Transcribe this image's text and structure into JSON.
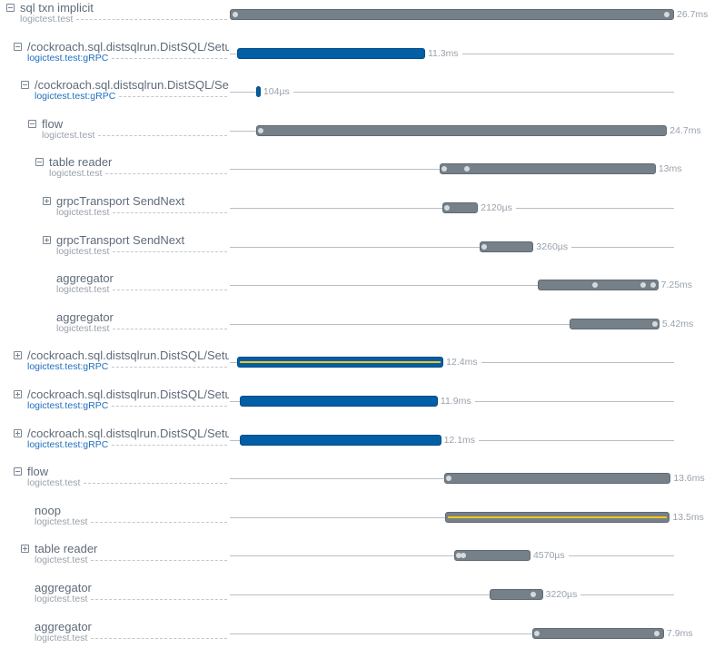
{
  "timeline": {
    "total_ms": 26.7
  },
  "colors": {
    "gray_bar": "#758089",
    "blue_bar": "#035fa5",
    "highlight": "#f2c618",
    "grpc_text": "#1f6fbf"
  },
  "spans": [
    {
      "title": "sql txn implicit",
      "service": "logictest.test",
      "toggle": "minus",
      "depth": 0,
      "start_ms": 0,
      "duration_ms": 26.7,
      "duration_label": "26.7ms",
      "color": "gray",
      "logs_ms": [
        0.3,
        26.2
      ]
    },
    {
      "title": "/cockroach.sql.distsqlrun.DistSQL/SetupFlow",
      "service": "logictest.test:gRPC",
      "toggle": "minus",
      "depth": 1,
      "start_ms": 0.44,
      "duration_ms": 11.3,
      "duration_label": "11.3ms",
      "color": "blue",
      "logs_ms": []
    },
    {
      "title": "/cockroach.sql.distsqlrun.DistSQL/SetupFlow",
      "service": "logictest.test:gRPC",
      "toggle": "minus",
      "depth": 2,
      "start_ms": 1.58,
      "duration_ms": 0.104,
      "duration_label": "104µs",
      "color": "blue",
      "logs_ms": []
    },
    {
      "title": "flow",
      "service": "logictest.test",
      "toggle": "minus",
      "depth": 3,
      "start_ms": 1.58,
      "duration_ms": 24.7,
      "duration_label": "24.7ms",
      "color": "gray",
      "logs_ms": [
        1.8
      ]
    },
    {
      "title": "table reader",
      "service": "logictest.test",
      "toggle": "minus",
      "depth": 4,
      "start_ms": 12.6,
      "duration_ms": 13,
      "duration_label": "13ms",
      "color": "gray",
      "logs_ms": [
        12.8,
        14.2
      ]
    },
    {
      "title": "grpcTransport SendNext",
      "service": "logictest.test",
      "toggle": "plus",
      "depth": 5,
      "start_ms": 12.8,
      "duration_ms": 2.12,
      "duration_label": "2120µs",
      "color": "gray",
      "logs_ms": [
        13.0
      ]
    },
    {
      "title": "grpcTransport SendNext",
      "service": "logictest.test",
      "toggle": "plus",
      "depth": 5,
      "start_ms": 15.0,
      "duration_ms": 3.26,
      "duration_label": "3260µs",
      "color": "gray",
      "logs_ms": [
        15.2
      ]
    },
    {
      "title": "aggregator",
      "service": "logictest.test",
      "toggle": "none",
      "depth": 5,
      "start_ms": 18.5,
      "duration_ms": 7.25,
      "duration_label": "7.25ms",
      "color": "gray",
      "logs_ms": [
        21.9,
        24.8,
        25.4
      ]
    },
    {
      "title": "aggregator",
      "service": "logictest.test",
      "toggle": "none",
      "depth": 5,
      "start_ms": 20.4,
      "duration_ms": 5.42,
      "duration_label": "5.42ms",
      "color": "gray",
      "logs_ms": [
        25.5
      ]
    },
    {
      "title": "/cockroach.sql.distsqlrun.DistSQL/SetupFlow",
      "service": "logictest.test:gRPC",
      "toggle": "plus",
      "depth": 1,
      "start_ms": 0.44,
      "duration_ms": 12.4,
      "duration_label": "12.4ms",
      "color": "blue",
      "stripe": true,
      "logs_ms": []
    },
    {
      "title": "/cockroach.sql.distsqlrun.DistSQL/SetupFlow",
      "service": "logictest.test:gRPC",
      "toggle": "plus",
      "depth": 1,
      "start_ms": 0.6,
      "duration_ms": 11.9,
      "duration_label": "11.9ms",
      "color": "blue",
      "logs_ms": []
    },
    {
      "title": "/cockroach.sql.distsqlrun.DistSQL/SetupFlow",
      "service": "logictest.test:gRPC",
      "toggle": "plus",
      "depth": 1,
      "start_ms": 0.6,
      "duration_ms": 12.1,
      "duration_label": "12.1ms",
      "color": "blue",
      "logs_ms": []
    },
    {
      "title": "flow",
      "service": "logictest.test",
      "toggle": "minus",
      "depth": 1,
      "start_ms": 12.9,
      "duration_ms": 13.6,
      "duration_label": "13.6ms",
      "color": "gray",
      "logs_ms": [
        13.1
      ]
    },
    {
      "title": "noop",
      "service": "logictest.test",
      "toggle": "none",
      "depth": 2,
      "start_ms": 12.95,
      "duration_ms": 13.5,
      "duration_label": "13.5ms",
      "color": "gray",
      "stripe": true,
      "logs_ms": []
    },
    {
      "title": "table reader",
      "service": "logictest.test",
      "toggle": "plus",
      "depth": 2,
      "start_ms": 13.5,
      "duration_ms": 4.57,
      "duration_label": "4570µs",
      "color": "gray",
      "logs_ms": [
        13.7,
        14.0
      ]
    },
    {
      "title": "aggregator",
      "service": "logictest.test",
      "toggle": "none",
      "depth": 2,
      "start_ms": 15.6,
      "duration_ms": 3.22,
      "duration_label": "3220µs",
      "color": "gray",
      "logs_ms": [
        18.2
      ]
    },
    {
      "title": "aggregator",
      "service": "logictest.test",
      "toggle": "none",
      "depth": 2,
      "start_ms": 18.2,
      "duration_ms": 7.9,
      "duration_label": "7.9ms",
      "color": "gray",
      "logs_ms": [
        18.4,
        25.6
      ]
    }
  ]
}
